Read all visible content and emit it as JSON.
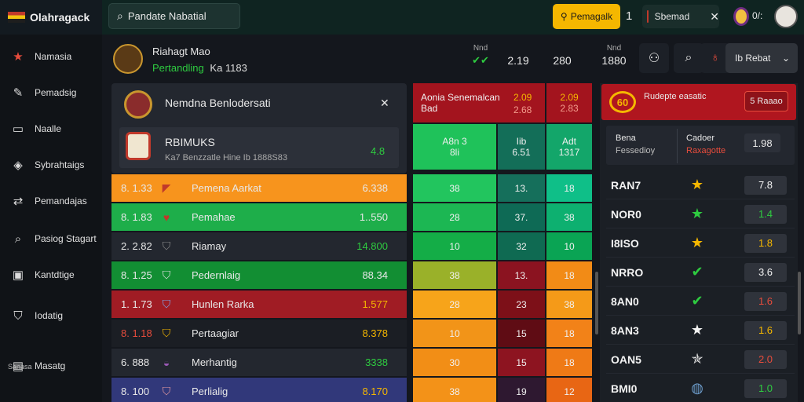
{
  "app": {
    "title": "Olahragack",
    "flag_colors": [
      "#c0392b",
      "#f1c40f",
      "#1e1e1e"
    ]
  },
  "topbar": {
    "search_icon": "search-icon",
    "search_value": "Pandate Nabatial",
    "promo_label": "Pemagalk",
    "promo_icon": "ticket-icon",
    "count": "1",
    "badge_label": "Sbemad",
    "close_icon": "close-icon",
    "user_label": "0/:"
  },
  "sidebar": {
    "items": [
      {
        "label": "Namasia",
        "icon": "star-icon",
        "glyph": "★"
      },
      {
        "label": "Pemadsig",
        "icon": "chat-icon",
        "glyph": "✎"
      },
      {
        "label": "Naalle",
        "icon": "screen-icon",
        "glyph": "▭"
      },
      {
        "label": "Sybrahtaigs",
        "icon": "chart-icon",
        "glyph": "◈"
      },
      {
        "label": "Pemandajas",
        "icon": "link-icon",
        "glyph": "⇄"
      },
      {
        "label": "Pasiog Stagart",
        "icon": "search-icon",
        "glyph": "⌕"
      },
      {
        "label": "Kantdtige",
        "icon": "image-icon",
        "glyph": "▣"
      },
      {
        "label": "Iodatig",
        "icon": "shield-icon",
        "glyph": "⛉"
      },
      {
        "label": "Masatg",
        "icon": "ticket-icon",
        "glyph": "▤"
      }
    ],
    "sub_label": "Sanasa"
  },
  "header": {
    "name": "Riahagt Mao",
    "status": "Pertandling",
    "status_extra": "Ka 1183",
    "odds": [
      {
        "top": "Nnd",
        "value": "2.19"
      },
      {
        "top": "",
        "value": "280"
      },
      {
        "top": "Nnd",
        "value": "1880"
      }
    ],
    "buttons": [
      {
        "icon": "user-icon",
        "glyph": "⚇"
      },
      {
        "icon": "search-icon",
        "glyph": "⌕"
      },
      {
        "icon": "notification-icon",
        "glyph": "♁"
      }
    ],
    "dropdown": "Ib Rebat",
    "dropdown_icon": "chevron-down-icon"
  },
  "match_card": {
    "title": "Nemdna Benlodersati",
    "close_icon": "close-icon",
    "inner_name": "RBIMUKS",
    "inner_sub": "Ka7 Benzzatle Hine Ib 1888S83",
    "inner_value": "4.8"
  },
  "standings": [
    {
      "pos": "8. 1.33",
      "team": "Pemena Aarkat",
      "pts": "6.338",
      "bg": "#f7941d",
      "crest": "flag-icon",
      "glyph": "◤",
      "crest_color": "#c0392b"
    },
    {
      "pos": "8. 1.83",
      "team": "Pemahae",
      "pts": "1..550",
      "bg": "#1eae4a",
      "crest": "shield-icon",
      "glyph": "♥",
      "crest_color": "#c0392b"
    },
    {
      "pos": "2. 2.82",
      "team": "Riamay",
      "pts": "14.800",
      "bg": "#23272f",
      "crest": "shield-icon",
      "glyph": "⛉",
      "crest_color": "#888",
      "pts_color": "#2ecc40"
    },
    {
      "pos": "8. 1.25",
      "team": "Pedernlaig",
      "pts": "88.34",
      "bg": "#128e33",
      "crest": "shield-icon",
      "glyph": "⛉",
      "crest_color": "#e0e0e0"
    },
    {
      "pos": "1. 1.73",
      "team": "Hunlen Rarka",
      "pts": "1.577",
      "bg": "#a01c24",
      "crest": "shield-icon",
      "glyph": "⛉",
      "crest_color": "#7ea4e8",
      "pts_color": "#f5b700"
    },
    {
      "pos": "8. 1.18",
      "team": "Pertaagiar",
      "pts": "8.378",
      "bg": "#1b1e24",
      "crest": "shield-icon",
      "glyph": "⛉",
      "crest_color": "#f5b700",
      "pts_color": "#f5b700",
      "pos_color": "#e74c3c"
    },
    {
      "pos": "6. 888",
      "team": "Merhantig",
      "pts": "3338",
      "bg": "#23272f",
      "crest": "ball-icon",
      "glyph": "◒",
      "crest_color": "#9b59b6",
      "pts_color": "#2ecc40"
    },
    {
      "pos": "8. 100",
      "team": "Perlialig",
      "pts": "8.170",
      "bg": "#31387a",
      "crest": "shield-icon",
      "glyph": "⛉",
      "crest_color": "#e59aa0",
      "pts_color": "#f5b700"
    }
  ],
  "odds_grid": {
    "head": {
      "label1": "Aonia Senemalcan",
      "label2": "Bad",
      "c1": "2.09",
      "c1b": "2.68",
      "c2": "2.09",
      "c2b": "2.83"
    },
    "sub": {
      "a1": "A8n 3",
      "a2": "8li",
      "b1": "Iib",
      "b2": "6.51",
      "c1": "Adt",
      "c2": "1317"
    },
    "rows": [
      [
        "38",
        "13.",
        "18"
      ],
      [
        "28",
        "37.",
        "38"
      ],
      [
        "10",
        "32",
        "10"
      ],
      [
        "38",
        "13.",
        "18"
      ],
      [
        "28",
        "23",
        "38"
      ],
      [
        "10",
        "15",
        "18"
      ],
      [
        "30",
        "15",
        "18"
      ],
      [
        "38",
        "19",
        "12"
      ]
    ],
    "colors": [
      [
        "#22c55e",
        "#156f5b",
        "#0fbf88"
      ],
      [
        "#1cb753",
        "#0e6a55",
        "#0db070"
      ],
      [
        "#14ad47",
        "#0f6a52",
        "#0aa454"
      ],
      [
        "#9ab129",
        "#8b1320",
        "#f28b16"
      ],
      [
        "#f7a41a",
        "#7d1018",
        "#f59a18"
      ],
      [
        "#f29418",
        "#5f0c14",
        "#f28218"
      ],
      [
        "#f28e16",
        "#8d1420",
        "#ef7a16"
      ],
      [
        "#f39218",
        "#2e1830",
        "#e86614"
      ]
    ]
  },
  "right_panel": {
    "icon_text": "60",
    "title": "Rudepte easatic",
    "button": "5 Raaao",
    "l1": "Bena",
    "l2": "Fessedioy",
    "l3": "Cadoer",
    "l4": "Raxagotte",
    "value": "1.98",
    "rows": [
      {
        "code": "RAN7",
        "icon": "star-icon",
        "glyph": "★",
        "color": "#f5b700",
        "value": "7.8",
        "vcolor": "#f2f2f2"
      },
      {
        "code": "NOR0",
        "icon": "star-icon",
        "glyph": "★",
        "color": "#2ecc40",
        "value": "1.4",
        "vcolor": "#2ecc40"
      },
      {
        "code": "I8ISO",
        "icon": "star-icon",
        "glyph": "★",
        "color": "#f5b700",
        "value": "1.8",
        "vcolor": "#f5b700"
      },
      {
        "code": "NRRO",
        "icon": "check-icon",
        "glyph": "✔",
        "color": "#2ecc40",
        "value": "3.6",
        "vcolor": "#f2f2f2"
      },
      {
        "code": "8AN0",
        "icon": "check-icon",
        "glyph": "✔",
        "color": "#2ecc40",
        "value": "1.6",
        "vcolor": "#e74c3c"
      },
      {
        "code": "8AN3",
        "icon": "star-icon",
        "glyph": "★",
        "color": "#f2f2f2",
        "value": "1.6",
        "vcolor": "#f5b700"
      },
      {
        "code": "OAN5",
        "icon": "star-icon",
        "glyph": "✯",
        "color": "#e0e0e0",
        "value": "2.0",
        "vcolor": "#e74c3c"
      },
      {
        "code": "BMI0",
        "icon": "ball-icon",
        "glyph": "◍",
        "color": "#6c9bc9",
        "value": "1.0",
        "vcolor": "#2ecc40"
      }
    ]
  }
}
